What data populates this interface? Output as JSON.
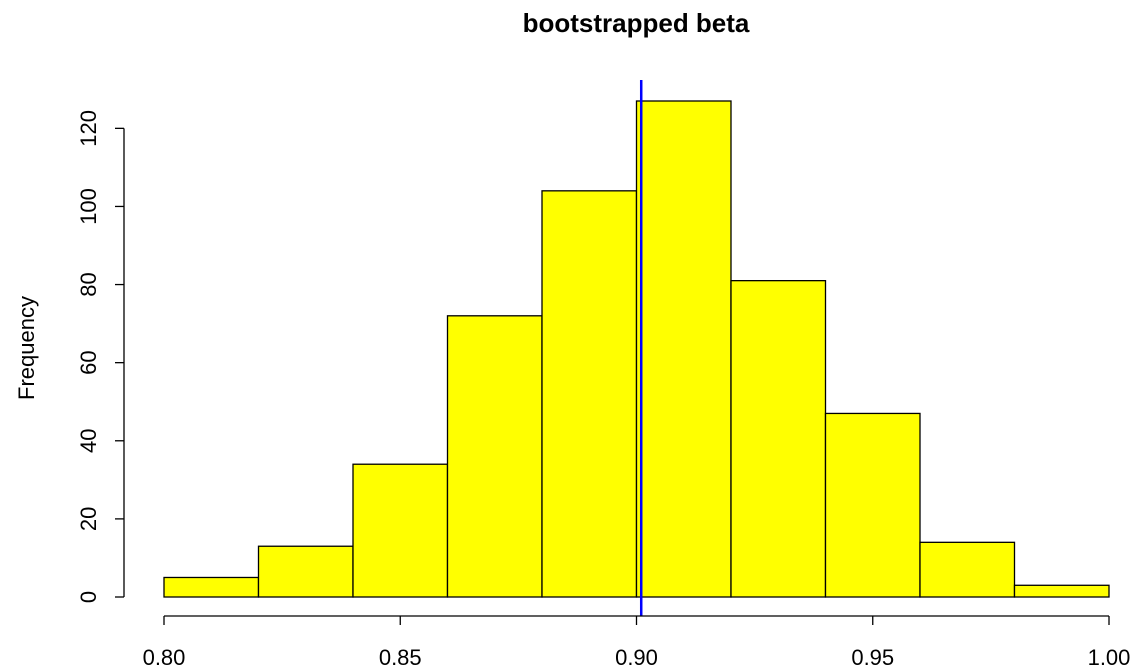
{
  "chart_data": {
    "type": "bar",
    "title": "bootstrapped beta",
    "xlabel": "",
    "ylabel": "Frequency",
    "xlim": [
      0.8,
      1.0
    ],
    "ylim": [
      0,
      127
    ],
    "bins": [
      {
        "from": 0.8,
        "to": 0.82,
        "count": 5
      },
      {
        "from": 0.82,
        "to": 0.84,
        "count": 13
      },
      {
        "from": 0.84,
        "to": 0.86,
        "count": 34
      },
      {
        "from": 0.86,
        "to": 0.88,
        "count": 72
      },
      {
        "from": 0.88,
        "to": 0.9,
        "count": 104
      },
      {
        "from": 0.9,
        "to": 0.92,
        "count": 127
      },
      {
        "from": 0.92,
        "to": 0.94,
        "count": 81
      },
      {
        "from": 0.94,
        "to": 0.96,
        "count": 47
      },
      {
        "from": 0.96,
        "to": 0.98,
        "count": 14
      },
      {
        "from": 0.98,
        "to": 1.0,
        "count": 3
      }
    ],
    "x_ticks": [
      "0.80",
      "0.85",
      "0.90",
      "0.95",
      "1.00"
    ],
    "y_ticks": [
      "0",
      "20",
      "40",
      "60",
      "80",
      "100",
      "120"
    ],
    "reference_line": {
      "x": 0.901
    },
    "colors": {
      "bar_fill": "#ffff00",
      "bar_stroke": "#000000",
      "reference_line": "#0000ff"
    },
    "grid": false
  }
}
